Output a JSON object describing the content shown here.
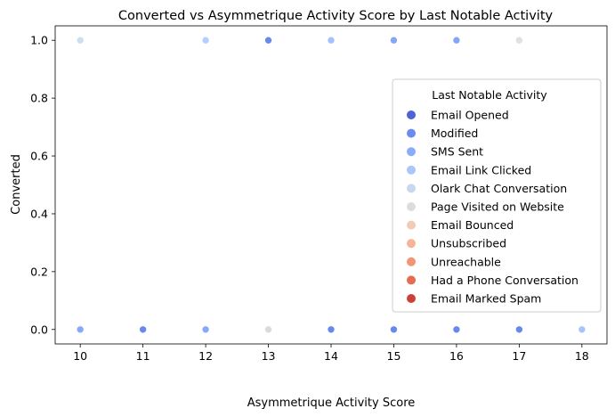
{
  "chart_data": {
    "type": "scatter",
    "title": "Converted vs Asymmetrique Activity Score by Last Notable Activity",
    "xlabel": "Asymmetrique Activity Score",
    "ylabel": "Converted",
    "xlim": [
      9.6,
      18.4
    ],
    "ylim": [
      -0.05,
      1.05
    ],
    "xticks": [
      "10",
      "11",
      "12",
      "13",
      "14",
      "15",
      "16",
      "17",
      "18"
    ],
    "yticks": [
      "0.0",
      "0.2",
      "0.4",
      "0.6",
      "0.8",
      "1.0"
    ],
    "grid": false,
    "legend": {
      "title": "Last Notable Activity",
      "position": "right"
    },
    "series": [
      {
        "name": "Email Opened",
        "color": "#4b64d6",
        "points": [
          [
            11,
            0
          ],
          [
            13,
            1
          ],
          [
            14,
            0
          ],
          [
            15,
            0
          ],
          [
            15,
            1
          ],
          [
            16,
            0
          ],
          [
            16,
            1
          ],
          [
            17,
            0
          ]
        ]
      },
      {
        "name": "Modified",
        "color": "#6a8bef",
        "points": [
          [
            10,
            0
          ],
          [
            11,
            0
          ],
          [
            12,
            0
          ],
          [
            13,
            1
          ],
          [
            14,
            0
          ],
          [
            14,
            1
          ],
          [
            15,
            0
          ],
          [
            15,
            1
          ],
          [
            16,
            0
          ],
          [
            16,
            1
          ],
          [
            17,
            0
          ]
        ]
      },
      {
        "name": "SMS Sent",
        "color": "#89acfd",
        "points": [
          [
            10,
            0
          ],
          [
            12,
            0
          ],
          [
            13,
            0
          ],
          [
            14,
            1
          ],
          [
            15,
            1
          ],
          [
            16,
            1
          ],
          [
            18,
            0
          ]
        ]
      },
      {
        "name": "Email Link Clicked",
        "color": "#a9c6fd",
        "points": [
          [
            12,
            1
          ],
          [
            14,
            1
          ],
          [
            18,
            0
          ]
        ]
      },
      {
        "name": "Olark Chat Conversation",
        "color": "#c7d7f0",
        "points": [
          [
            10,
            1
          ],
          [
            13,
            0
          ]
        ]
      },
      {
        "name": "Page Visited on Website",
        "color": "#dddcdc",
        "points": [
          [
            13,
            0
          ],
          [
            17,
            1
          ]
        ]
      },
      {
        "name": "Email Bounced",
        "color": "#f2cbb7",
        "points": []
      },
      {
        "name": "Unsubscribed",
        "color": "#f7b396",
        "points": []
      },
      {
        "name": "Unreachable",
        "color": "#f39475",
        "points": []
      },
      {
        "name": "Had a Phone Conversation",
        "color": "#e56b51",
        "points": []
      },
      {
        "name": "Email Marked Spam",
        "color": "#cc403a",
        "points": []
      }
    ]
  }
}
